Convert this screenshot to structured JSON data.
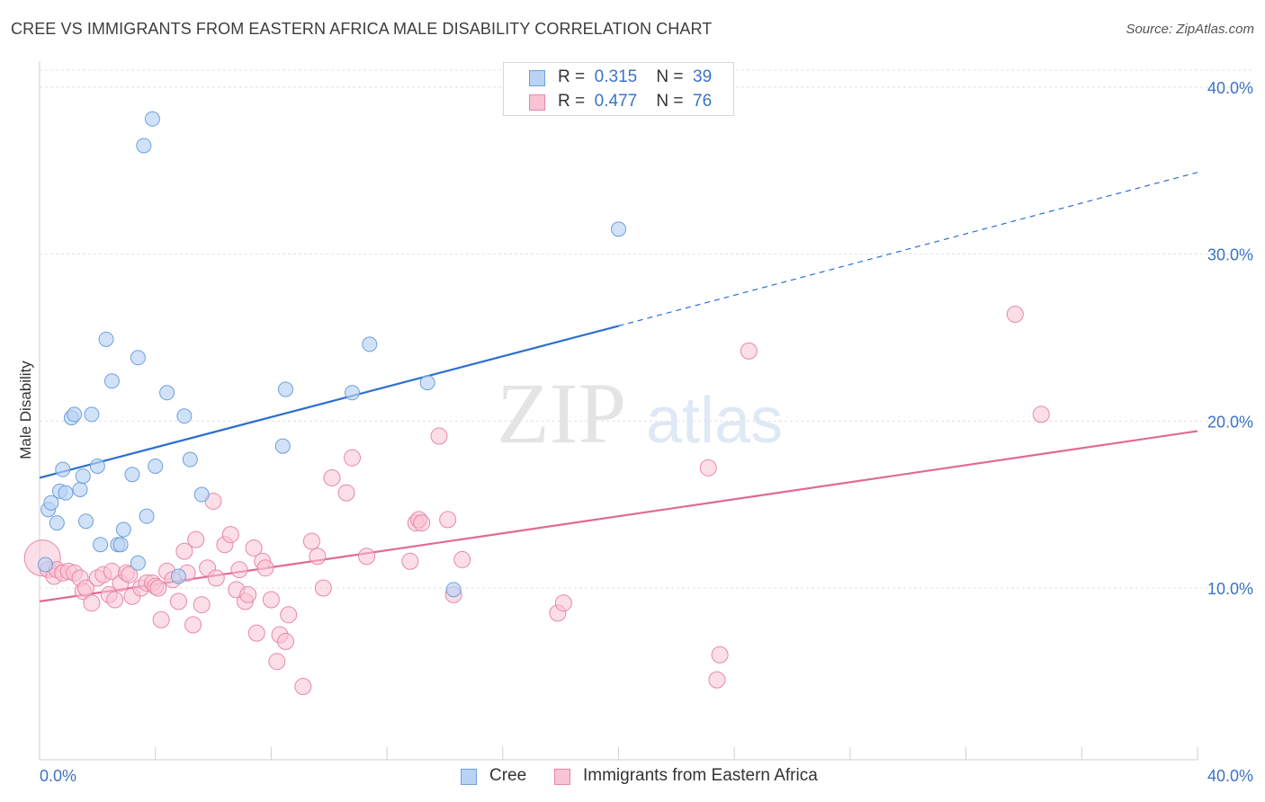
{
  "header": {
    "title": "CREE VS IMMIGRANTS FROM EASTERN AFRICA MALE DISABILITY CORRELATION CHART",
    "source": "Source: ZipAtlas.com"
  },
  "watermark": {
    "zip": "ZIP",
    "atlas": "atlas"
  },
  "legend_top": {
    "rows": [
      {
        "r_label": "R =",
        "r_value": "0.315",
        "n_label": "N =",
        "n_value": "39"
      },
      {
        "r_label": "R =",
        "r_value": "0.477",
        "n_label": "N =",
        "n_value": "76"
      }
    ]
  },
  "legend_bottom": {
    "items": [
      "Cree",
      "Immigrants from Eastern Africa"
    ]
  },
  "colors": {
    "cree_fill": "#b9d3f4",
    "cree_stroke": "#6f9fdc",
    "cree_line": "#2b6fcf",
    "eaf_fill": "#f9c3d3",
    "eaf_stroke": "#e887a6",
    "eaf_line": "#e06992",
    "axis_label": "#3a73c8",
    "grid": "#e0e0e0"
  },
  "chart_data": {
    "type": "scatter",
    "title": "CREE VS IMMIGRANTS FROM EASTERN AFRICA MALE DISABILITY CORRELATION CHART",
    "xlabel": "",
    "ylabel": "Male Disability",
    "xlim": [
      0,
      40
    ],
    "ylim": [
      0,
      41
    ],
    "x_tick_labels": [
      "0.0%",
      "40.0%"
    ],
    "y_ticks": [
      10,
      20,
      30,
      40
    ],
    "y_tick_labels": [
      "10.0%",
      "20.0%",
      "30.0%",
      "40.0%"
    ],
    "grid": true,
    "legend_position": "top-center",
    "series": [
      {
        "name": "Cree",
        "r": 0.315,
        "n": 39,
        "trend": {
          "x0": 0,
          "y0": 16.6,
          "x1": 20,
          "y1": 25.7,
          "dash_to_x": 40,
          "dash_to_y": 34.9
        },
        "points": [
          [
            0.3,
            14.7
          ],
          [
            0.4,
            15.1
          ],
          [
            0.6,
            13.9
          ],
          [
            0.7,
            15.8
          ],
          [
            0.8,
            17.1
          ],
          [
            0.9,
            15.7
          ],
          [
            1.1,
            20.2
          ],
          [
            1.2,
            20.4
          ],
          [
            1.4,
            15.9
          ],
          [
            1.5,
            16.7
          ],
          [
            1.6,
            14.0
          ],
          [
            1.8,
            20.4
          ],
          [
            2.0,
            17.3
          ],
          [
            2.1,
            12.6
          ],
          [
            2.3,
            24.9
          ],
          [
            2.5,
            22.4
          ],
          [
            2.7,
            12.6
          ],
          [
            2.8,
            12.6
          ],
          [
            2.9,
            13.5
          ],
          [
            3.2,
            16.8
          ],
          [
            3.4,
            11.5
          ],
          [
            3.4,
            23.8
          ],
          [
            3.6,
            36.5
          ],
          [
            3.7,
            14.3
          ],
          [
            3.9,
            38.1
          ],
          [
            4.0,
            17.3
          ],
          [
            4.4,
            21.7
          ],
          [
            4.8,
            10.7
          ],
          [
            5.0,
            20.3
          ],
          [
            5.2,
            17.7
          ],
          [
            5.6,
            15.6
          ],
          [
            8.4,
            18.5
          ],
          [
            8.5,
            21.9
          ],
          [
            10.8,
            21.7
          ],
          [
            11.4,
            24.6
          ],
          [
            13.4,
            22.3
          ],
          [
            14.3,
            9.9
          ],
          [
            20.0,
            31.5
          ],
          [
            0.2,
            11.4
          ]
        ]
      },
      {
        "name": "Immigrants from Eastern Africa",
        "r": 0.477,
        "n": 76,
        "trend": {
          "x0": 0,
          "y0": 9.2,
          "x1": 40,
          "y1": 19.4
        },
        "points": [
          [
            0.1,
            11.8
          ],
          [
            0.3,
            11.1
          ],
          [
            0.5,
            10.7
          ],
          [
            0.6,
            11.1
          ],
          [
            0.8,
            10.9
          ],
          [
            1.0,
            11.0
          ],
          [
            1.2,
            10.9
          ],
          [
            1.4,
            10.6
          ],
          [
            1.5,
            9.8
          ],
          [
            1.6,
            10.0
          ],
          [
            1.8,
            9.1
          ],
          [
            2.0,
            10.6
          ],
          [
            2.2,
            10.8
          ],
          [
            2.4,
            9.6
          ],
          [
            2.5,
            11.0
          ],
          [
            2.6,
            9.3
          ],
          [
            2.8,
            10.3
          ],
          [
            3.0,
            10.9
          ],
          [
            3.1,
            10.8
          ],
          [
            3.2,
            9.5
          ],
          [
            3.5,
            10.0
          ],
          [
            3.7,
            10.3
          ],
          [
            3.9,
            10.3
          ],
          [
            4.0,
            10.1
          ],
          [
            4.1,
            10.0
          ],
          [
            4.2,
            8.1
          ],
          [
            4.4,
            11.0
          ],
          [
            4.6,
            10.5
          ],
          [
            4.8,
            9.2
          ],
          [
            5.0,
            12.2
          ],
          [
            5.1,
            10.9
          ],
          [
            5.3,
            7.8
          ],
          [
            5.4,
            12.9
          ],
          [
            5.6,
            9.0
          ],
          [
            5.8,
            11.2
          ],
          [
            6.0,
            15.2
          ],
          [
            6.1,
            10.6
          ],
          [
            6.4,
            12.6
          ],
          [
            6.6,
            13.2
          ],
          [
            6.8,
            9.9
          ],
          [
            6.9,
            11.1
          ],
          [
            7.1,
            9.2
          ],
          [
            7.2,
            9.6
          ],
          [
            7.4,
            12.4
          ],
          [
            7.5,
            7.3
          ],
          [
            7.7,
            11.6
          ],
          [
            7.8,
            11.2
          ],
          [
            8.0,
            9.3
          ],
          [
            8.2,
            5.6
          ],
          [
            8.3,
            7.2
          ],
          [
            8.5,
            6.8
          ],
          [
            8.6,
            8.4
          ],
          [
            9.1,
            4.1
          ],
          [
            9.4,
            12.8
          ],
          [
            9.6,
            11.9
          ],
          [
            9.8,
            10.0
          ],
          [
            10.1,
            16.6
          ],
          [
            10.6,
            15.7
          ],
          [
            10.8,
            17.8
          ],
          [
            11.3,
            11.9
          ],
          [
            12.8,
            11.6
          ],
          [
            13.0,
            13.9
          ],
          [
            13.1,
            14.1
          ],
          [
            13.2,
            13.9
          ],
          [
            13.8,
            19.1
          ],
          [
            14.1,
            14.1
          ],
          [
            14.3,
            9.6
          ],
          [
            14.6,
            11.7
          ],
          [
            17.9,
            8.5
          ],
          [
            18.1,
            9.1
          ],
          [
            23.1,
            17.2
          ],
          [
            23.4,
            4.5
          ],
          [
            23.5,
            6.0
          ],
          [
            24.5,
            24.2
          ],
          [
            33.7,
            26.4
          ],
          [
            34.6,
            20.4
          ]
        ]
      }
    ]
  }
}
